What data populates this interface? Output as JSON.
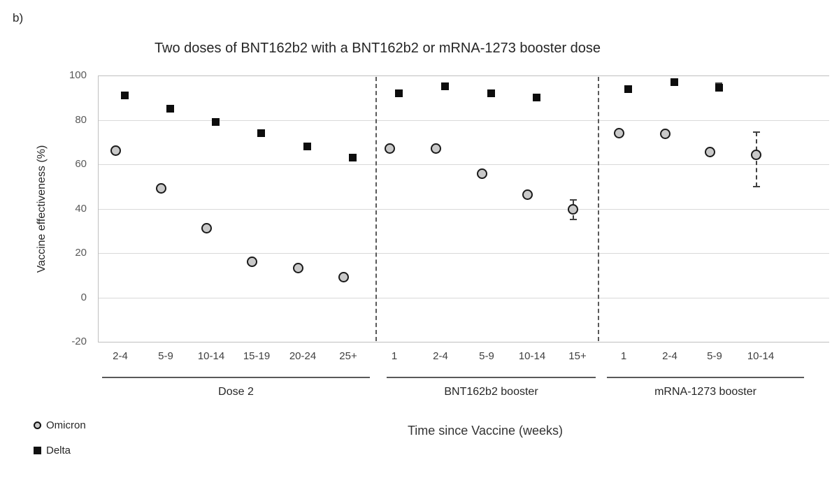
{
  "figure_label": "b)",
  "title": "Two doses of BNT162b2 with a BNT162b2 or mRNA-1273 booster dose",
  "y_axis": {
    "label": "Vaccine effectiveness (%)",
    "ticks": [
      100,
      80,
      60,
      40,
      20,
      0,
      -20
    ],
    "min": -20,
    "max": 100
  },
  "x_axis": {
    "title": "Time since Vaccine (weeks)"
  },
  "legend": [
    {
      "name": "Omicron",
      "marker": "circle",
      "fill": "#c9c9c9",
      "stroke": "#1a1a1a"
    },
    {
      "name": "Delta",
      "marker": "square",
      "fill": "#0d0d0d"
    }
  ],
  "colors": {
    "gridline": "#d9d9d9",
    "axis_border": "#bfbfbf",
    "separator": "#595959",
    "omicron_fill": "#c9c9c9",
    "omicron_stroke": "#1a1a1a",
    "delta_fill": "#0d0d0d",
    "error_bar": "#404040",
    "text": "#262626"
  },
  "chart_data": {
    "type": "scatter",
    "title": "Two doses of BNT162b2 with a BNT162b2 or mRNA-1273 booster dose",
    "xlabel": "Time since Vaccine (weeks)",
    "ylabel": "Vaccine effectiveness (%)",
    "ylim": [
      -20,
      100
    ],
    "grid": true,
    "legend_position": "bottom-left",
    "groups": [
      {
        "label": "Dose 2",
        "categories": [
          "2-4",
          "5-9",
          "10-14",
          "15-19",
          "20-24",
          "25+"
        ],
        "series": [
          {
            "name": "Omicron",
            "values": [
              66,
              49,
              31,
              16,
              13,
              9
            ],
            "error_bars": {}
          },
          {
            "name": "Delta",
            "values": [
              91,
              85,
              79,
              74,
              68,
              63
            ],
            "error_bars": {}
          }
        ]
      },
      {
        "label": "BNT162b2 booster",
        "categories": [
          "1",
          "2-4",
          "5-9",
          "10-14",
          "15+"
        ],
        "series": [
          {
            "name": "Omicron",
            "values": [
              67,
              67,
              55.5,
              46,
              39.5
            ],
            "error_bars": {
              "4": [
                35,
                44
              ]
            }
          },
          {
            "name": "Delta",
            "values": [
              92,
              95,
              92,
              90,
              null
            ],
            "error_bars": {}
          }
        ]
      },
      {
        "label": "mRNA-1273 booster",
        "categories": [
          "1",
          "2-4",
          "5-9",
          "10-14"
        ],
        "series": [
          {
            "name": "Omicron",
            "values": [
              74,
              73.5,
              65.5,
              64
            ],
            "error_bars": {
              "3": [
                50,
                74.5
              ]
            }
          },
          {
            "name": "Delta",
            "values": [
              94,
              97,
              94.5,
              null
            ],
            "error_bars": {
              "2": [
                93,
                96.5
              ]
            }
          }
        ]
      }
    ]
  }
}
